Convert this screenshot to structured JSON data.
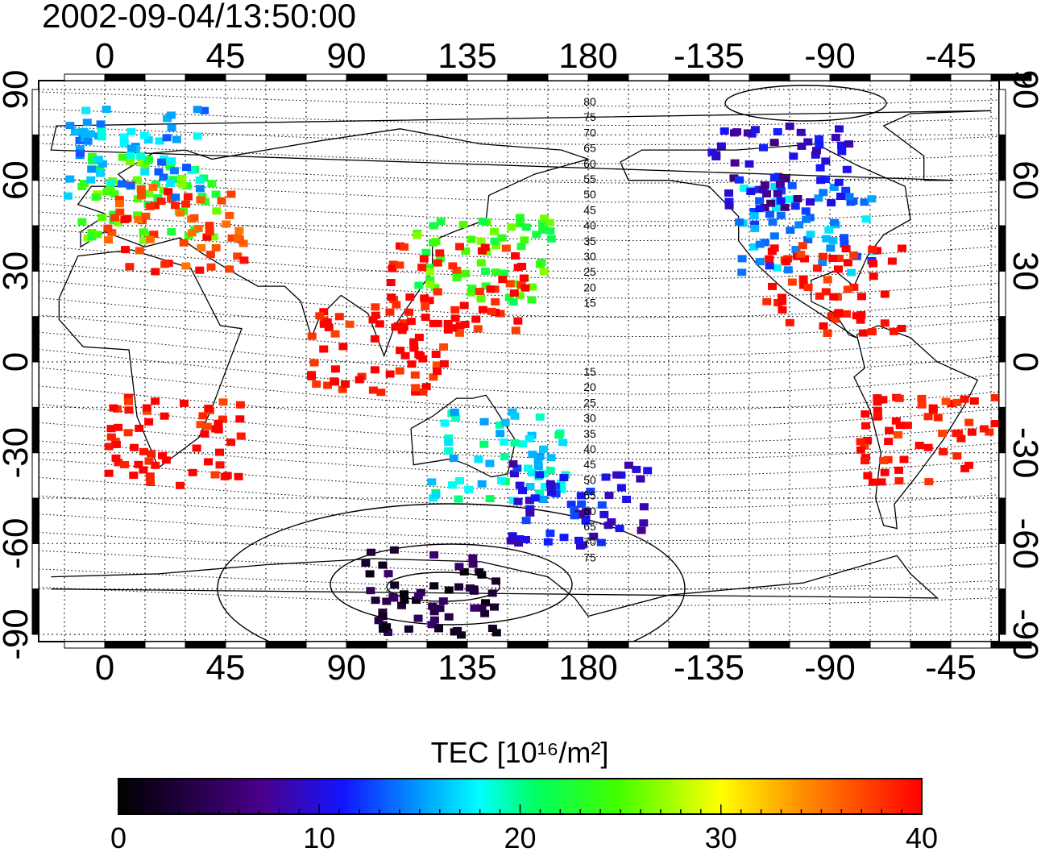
{
  "title": "2002-09-04/13:50:00",
  "map": {
    "lon_labels_top": [
      "0",
      "45",
      "90",
      "135",
      "180",
      "-135",
      "-90",
      "-45"
    ],
    "lon_labels_bottom": [
      "0",
      "45",
      "90",
      "135",
      "180",
      "-135",
      "-90",
      "-45"
    ],
    "lat_labels": [
      "90",
      "60",
      "30",
      "0",
      "-30",
      "-60",
      "-90"
    ],
    "contour_labels_north": [
      "80",
      "75",
      "70",
      "65",
      "60",
      "55",
      "50",
      "45",
      "40",
      "35",
      "30",
      "25",
      "20",
      "15"
    ],
    "contour_labels_south": [
      "15",
      "20",
      "25",
      "30",
      "35",
      "40",
      "45",
      "50",
      "55",
      "60",
      "65",
      "70",
      "75"
    ],
    "tec_samples": [
      {
        "lon": 15,
        "lat": 55,
        "tec": 24
      },
      {
        "lon": 25,
        "lat": 45,
        "tec": 38
      },
      {
        "lon": 10,
        "lat": 70,
        "tec": 16
      },
      {
        "lon": 140,
        "lat": 35,
        "tec": 24
      },
      {
        "lon": 130,
        "lat": 25,
        "tec": 40
      },
      {
        "lon": 100,
        "lat": 5,
        "tec": 40
      },
      {
        "lon": -100,
        "lat": 45,
        "tec": 15
      },
      {
        "lon": -90,
        "lat": 25,
        "tec": 40
      },
      {
        "lon": -110,
        "lat": 65,
        "tec": 9
      },
      {
        "lon": -55,
        "lat": -25,
        "tec": 40
      },
      {
        "lon": 145,
        "lat": -30,
        "tec": 18
      },
      {
        "lon": 175,
        "lat": -45,
        "tec": 10
      },
      {
        "lon": 120,
        "lat": -75,
        "tec": 3
      },
      {
        "lon": 25,
        "lat": -25,
        "tec": 40
      }
    ]
  },
  "colorbar": {
    "title": "TEC  [10¹⁶/m²]",
    "ticks": [
      "0",
      "10",
      "20",
      "30",
      "40"
    ],
    "colors": [
      "#000000",
      "#5500aa",
      "#0000ff",
      "#00ffff",
      "#00ff00",
      "#ffff00",
      "#ff8000",
      "#ff0000"
    ]
  }
}
